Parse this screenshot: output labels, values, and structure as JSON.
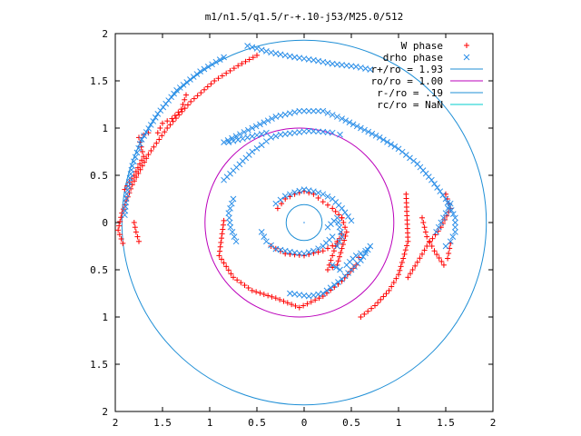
{
  "chart_data": {
    "type": "scatter",
    "title": "m1/n1.5/q1.5/r-+.10-j53/M25.0/512",
    "xlabel": "",
    "ylabel": "",
    "xlim": [
      -2,
      2
    ],
    "ylim": [
      -2,
      2
    ],
    "x_tick_values": [
      -2,
      -1.5,
      -1,
      -0.5,
      0,
      0.5,
      1,
      1.5,
      2
    ],
    "x_tick_labels": [
      "2",
      "1.5",
      "1",
      "0.5",
      "0",
      "0.5",
      "1",
      "1.5",
      "2"
    ],
    "y_tick_values": [
      2,
      1.5,
      1,
      0.5,
      0,
      -0.5,
      -1,
      -1.5,
      -2
    ],
    "y_tick_labels": [
      "2",
      "1.5",
      "1",
      "0.5",
      "0",
      "0.5",
      "1",
      "1.5",
      "2"
    ],
    "grid": false,
    "legend_position": "top-right",
    "colors": {
      "w_phase": "#ff0000",
      "drho_phase": "#2a8ee8",
      "r_plus_circle": "#1f8fd6",
      "ro_circle": "#bb00bb",
      "r_minus_circle": "#1f8fd6",
      "rc_circle": "#00cccc"
    },
    "legend": [
      {
        "key": "w_phase",
        "label": "W phase",
        "kind": "plus"
      },
      {
        "key": "drho_phase",
        "label": "drho phase",
        "kind": "cross"
      },
      {
        "key": "r_plus_circle",
        "label": "r+/ro = 1.93",
        "kind": "line"
      },
      {
        "key": "ro_circle",
        "label": "ro/ro = 1.00",
        "kind": "line"
      },
      {
        "key": "r_minus_circle",
        "label": "r-/ro = .19",
        "kind": "line"
      },
      {
        "key": "rc_circle",
        "label": "rc/ro = NaN",
        "kind": "line"
      }
    ],
    "circles": [
      {
        "key": "r_plus_circle",
        "cx": 0,
        "cy": 0,
        "r": 1.93
      },
      {
        "key": "ro_circle",
        "cx": -0.05,
        "cy": 0,
        "r": 1.0
      },
      {
        "key": "r_minus_circle",
        "cx": 0,
        "cy": 0,
        "r": 0.19
      }
    ],
    "series": [
      {
        "name": "W phase",
        "marker": "plus",
        "arms": [
          {
            "x": [
              -0.5,
              -0.7,
              -0.95,
              -1.2,
              -1.45,
              -1.65,
              -1.82,
              -1.93,
              -1.97,
              -1.92
            ],
            "y": [
              1.77,
              1.66,
              1.5,
              1.28,
              1.0,
              0.72,
              0.4,
              0.1,
              -0.08,
              -0.22
            ]
          },
          {
            "x": [
              -0.85,
              -0.9,
              -0.75,
              -0.55,
              -0.3,
              -0.05,
              0.2,
              0.4,
              0.55,
              0.58
            ],
            "y": [
              0.02,
              -0.35,
              -0.58,
              -0.72,
              -0.8,
              -0.9,
              -0.78,
              -0.62,
              -0.45,
              -0.37
            ]
          },
          {
            "x": [
              0.6,
              0.75,
              0.9,
              1.0,
              1.05,
              1.1,
              1.08
            ],
            "y": [
              -1.0,
              -0.88,
              -0.72,
              -0.55,
              -0.38,
              -0.2,
              0.3
            ]
          },
          {
            "x": [
              1.1,
              1.2,
              1.3,
              1.45,
              1.55,
              1.5
            ],
            "y": [
              -0.58,
              -0.42,
              -0.25,
              -0.05,
              0.15,
              0.3
            ]
          },
          {
            "x": [
              1.25,
              1.3,
              1.38,
              1.48,
              1.52,
              1.55
            ],
            "y": [
              0.05,
              -0.15,
              -0.3,
              -0.45,
              -0.38,
              -0.22
            ]
          },
          {
            "x": [
              -0.35,
              -0.2,
              0.0,
              0.2,
              0.35,
              0.4
            ],
            "y": [
              -0.25,
              -0.33,
              -0.35,
              -0.3,
              -0.22,
              -0.12
            ]
          },
          {
            "x": [
              -0.28,
              -0.2,
              -0.1,
              0.0,
              0.1,
              0.2,
              0.3,
              0.4
            ],
            "y": [
              0.15,
              0.25,
              0.3,
              0.33,
              0.3,
              0.22,
              0.15,
              0.05
            ]
          },
          {
            "x": [
              0.35,
              0.3,
              0.25,
              0.35,
              0.45,
              0.4
            ],
            "y": [
              -0.2,
              -0.35,
              -0.5,
              -0.45,
              -0.1,
              0.05
            ]
          },
          {
            "x": [
              -1.9,
              -1.8,
              -1.7,
              -1.75,
              -1.65
            ],
            "y": [
              0.35,
              0.5,
              0.7,
              0.9,
              0.95
            ]
          },
          {
            "x": [
              -1.55,
              -1.5,
              -1.4,
              -1.3,
              -1.25
            ],
            "y": [
              0.95,
              1.05,
              1.1,
              1.2,
              1.35
            ]
          },
          {
            "x": [
              -1.8,
              -1.78,
              -1.75
            ],
            "y": [
              0.0,
              -0.1,
              -0.2
            ]
          }
        ]
      },
      {
        "name": "drho phase",
        "marker": "cross",
        "arms": [
          {
            "x": [
              -0.6,
              -0.35,
              -0.1,
              0.1,
              0.3,
              0.55,
              0.7
            ],
            "y": [
              1.87,
              1.8,
              1.75,
              1.72,
              1.68,
              1.65,
              1.62
            ]
          },
          {
            "x": [
              -0.85,
              -1.1,
              -1.35,
              -1.55,
              -1.72,
              -1.82,
              -1.88,
              -1.9
            ],
            "y": [
              1.75,
              1.6,
              1.4,
              1.15,
              0.88,
              0.6,
              0.3,
              0.08
            ]
          },
          {
            "x": [
              -0.85,
              -0.55,
              -0.3,
              -0.05,
              0.2,
              0.4,
              0.6,
              0.8,
              1.0,
              1.2,
              1.35,
              1.5,
              1.6,
              1.6,
              1.55,
              1.5
            ],
            "y": [
              0.85,
              1.0,
              1.12,
              1.18,
              1.18,
              1.1,
              1.0,
              0.9,
              0.78,
              0.62,
              0.45,
              0.25,
              0.05,
              -0.1,
              -0.2,
              -0.25
            ]
          },
          {
            "x": [
              -0.85,
              -0.75,
              -0.65,
              -0.55,
              -0.45,
              -0.35,
              -0.25,
              -0.1,
              0.05,
              0.2,
              0.3,
              0.38
            ],
            "y": [
              0.45,
              0.55,
              0.65,
              0.75,
              0.82,
              0.9,
              0.93,
              0.95,
              0.97,
              0.96,
              0.95,
              0.93
            ]
          },
          {
            "x": [
              -0.75,
              -0.8,
              -0.78,
              -0.72
            ],
            "y": [
              0.25,
              0.1,
              -0.05,
              -0.2
            ]
          },
          {
            "x": [
              -0.15,
              0.05,
              0.2,
              0.4,
              0.5,
              0.6,
              0.7
            ],
            "y": [
              -0.75,
              -0.78,
              -0.75,
              -0.6,
              -0.5,
              -0.4,
              -0.25
            ]
          },
          {
            "x": [
              0.3,
              0.38,
              0.45,
              0.55,
              0.65
            ],
            "y": [
              -0.45,
              -0.5,
              -0.45,
              -0.35,
              -0.3
            ]
          },
          {
            "x": [
              -0.45,
              -0.4,
              -0.3,
              -0.2,
              -0.1,
              0.0,
              0.1,
              0.2,
              0.3
            ],
            "y": [
              -0.1,
              -0.2,
              -0.28,
              -0.3,
              -0.32,
              -0.33,
              -0.3,
              -0.25,
              -0.15
            ]
          },
          {
            "x": [
              -0.3,
              -0.2,
              -0.1,
              0.0,
              0.1,
              0.2,
              0.3,
              0.4,
              0.5
            ],
            "y": [
              0.2,
              0.28,
              0.32,
              0.35,
              0.33,
              0.3,
              0.25,
              0.15,
              0.02
            ]
          },
          {
            "x": [
              0.25,
              0.35,
              0.4,
              0.35
            ],
            "y": [
              -0.05,
              0.05,
              -0.15,
              -0.25
            ]
          },
          {
            "x": [
              1.4,
              1.45,
              1.5,
              1.55
            ],
            "y": [
              -0.1,
              0.0,
              0.1,
              0.2
            ]
          },
          {
            "x": [
              -0.8,
              -0.6,
              -0.4
            ],
            "y": [
              0.85,
              0.9,
              0.95
            ]
          }
        ]
      }
    ]
  }
}
